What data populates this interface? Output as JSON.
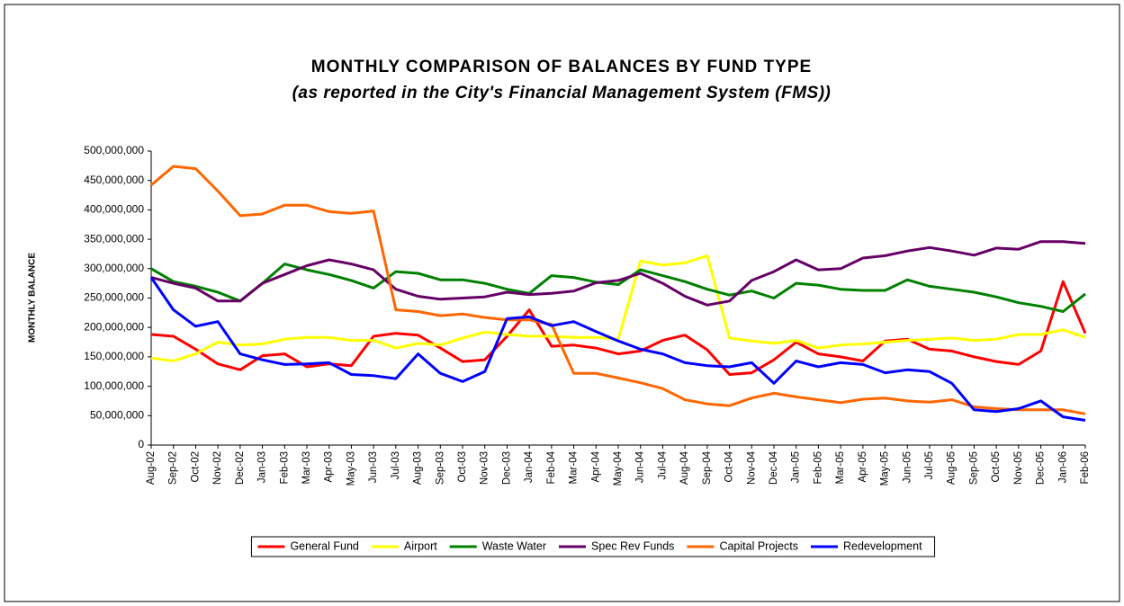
{
  "chart_data": {
    "type": "line",
    "title": "MONTHLY COMPARISON OF BALANCES BY FUND TYPE",
    "subtitle": "(as reported in the City's Financial Management System (FMS))",
    "y_label": "MONTHLY BALANCE",
    "categories": [
      "Aug-02",
      "Sep-02",
      "Oct-02",
      "Nov-02",
      "Dec-02",
      "Jan-03",
      "Feb-03",
      "Mar-03",
      "Apr-03",
      "May-03",
      "Jun-03",
      "Jul-03",
      "Aug-03",
      "Sep-03",
      "Oct-03",
      "Nov-03",
      "Dec-03",
      "Jan-04",
      "Feb-04",
      "Mar-04",
      "Apr-04",
      "May-04",
      "Jun-04",
      "Jul-04",
      "Aug-04",
      "Sep-04",
      "Oct-04",
      "Nov-04",
      "Dec-04",
      "Jan-05",
      "Feb-05",
      "Mar-05",
      "Apr-05",
      "May-05",
      "Jun-05",
      "Jul-05",
      "Aug-05",
      "Sep-05",
      "Oct-05",
      "Nov-05",
      "Dec-05",
      "Jan-06",
      "Feb-06"
    ],
    "series": [
      {
        "name": "General Fund",
        "color": "#ff0000",
        "values": [
          188000000,
          185000000,
          163000000,
          138000000,
          128000000,
          152000000,
          155000000,
          133000000,
          138000000,
          135000000,
          185000000,
          190000000,
          187000000,
          165000000,
          142000000,
          145000000,
          185000000,
          230000000,
          168000000,
          170000000,
          165000000,
          155000000,
          160000000,
          178000000,
          187000000,
          162000000,
          120000000,
          123000000,
          145000000,
          175000000,
          155000000,
          150000000,
          143000000,
          177000000,
          180000000,
          163000000,
          160000000,
          150000000,
          142000000,
          137000000,
          160000000,
          278000000,
          190000000
        ]
      },
      {
        "name": "Airport",
        "color": "#ffff00",
        "values": [
          148000000,
          143000000,
          155000000,
          175000000,
          170000000,
          172000000,
          180000000,
          183000000,
          183000000,
          178000000,
          178000000,
          165000000,
          173000000,
          170000000,
          182000000,
          192000000,
          188000000,
          185000000,
          185000000,
          183000000,
          183000000,
          180000000,
          313000000,
          306000000,
          310000000,
          322000000,
          182000000,
          177000000,
          173000000,
          178000000,
          165000000,
          170000000,
          172000000,
          175000000,
          178000000,
          180000000,
          182000000,
          178000000,
          180000000,
          188000000,
          188000000,
          196000000,
          183000000
        ]
      },
      {
        "name": "Waste Water",
        "color": "#008000",
        "values": [
          300000000,
          278000000,
          270000000,
          260000000,
          245000000,
          275000000,
          308000000,
          298000000,
          290000000,
          280000000,
          267000000,
          295000000,
          292000000,
          281000000,
          281000000,
          275000000,
          265000000,
          258000000,
          288000000,
          285000000,
          277000000,
          273000000,
          298000000,
          288000000,
          278000000,
          265000000,
          255000000,
          262000000,
          250000000,
          275000000,
          272000000,
          265000000,
          263000000,
          263000000,
          281000000,
          270000000,
          265000000,
          260000000,
          252000000,
          242000000,
          236000000,
          227000000,
          257000000
        ]
      },
      {
        "name": "Spec Rev Funds",
        "color": "#660066",
        "values": [
          285000000,
          275000000,
          267000000,
          245000000,
          245000000,
          275000000,
          290000000,
          305000000,
          315000000,
          308000000,
          298000000,
          265000000,
          253000000,
          248000000,
          250000000,
          252000000,
          260000000,
          256000000,
          258000000,
          262000000,
          276000000,
          280000000,
          292000000,
          275000000,
          253000000,
          238000000,
          245000000,
          280000000,
          295000000,
          315000000,
          298000000,
          300000000,
          318000000,
          322000000,
          330000000,
          336000000,
          330000000,
          323000000,
          335000000,
          333000000,
          346000000,
          346000000,
          343000000
        ]
      },
      {
        "name": "Capital Projects",
        "color": "#ff6600",
        "values": [
          442000000,
          474000000,
          470000000,
          432000000,
          390000000,
          393000000,
          408000000,
          408000000,
          397000000,
          394000000,
          398000000,
          230000000,
          227000000,
          220000000,
          223000000,
          217000000,
          213000000,
          213000000,
          205000000,
          122000000,
          122000000,
          114000000,
          106000000,
          96000000,
          77000000,
          70000000,
          67000000,
          80000000,
          88000000,
          82000000,
          77000000,
          72000000,
          78000000,
          80000000,
          75000000,
          73000000,
          77000000,
          65000000,
          62000000,
          60000000,
          60000000,
          60000000,
          53000000
        ]
      },
      {
        "name": "Redevelopment",
        "color": "#0000ff",
        "values": [
          285000000,
          230000000,
          202000000,
          210000000,
          155000000,
          145000000,
          137000000,
          138000000,
          140000000,
          120000000,
          118000000,
          113000000,
          155000000,
          122000000,
          108000000,
          125000000,
          215000000,
          218000000,
          203000000,
          210000000,
          193000000,
          177000000,
          163000000,
          155000000,
          140000000,
          135000000,
          133000000,
          140000000,
          105000000,
          143000000,
          133000000,
          140000000,
          137000000,
          123000000,
          128000000,
          125000000,
          105000000,
          60000000,
          57000000,
          62000000,
          75000000,
          48000000,
          42000000
        ]
      }
    ],
    "ylim": [
      0,
      500000000
    ],
    "yticks": [
      0,
      {
        "value": 50000000,
        "label": "50,000,000"
      },
      {
        "value": 100000000,
        "label": "100,000,000"
      },
      {
        "value": 150000000,
        "label": "150,000,000"
      },
      {
        "value": 200000000,
        "label": "200,000,000"
      },
      {
        "value": 250000000,
        "label": "250,000,000"
      },
      {
        "value": 300000000,
        "label": "300,000,000"
      },
      {
        "value": 350000000,
        "label": "350,000,000"
      },
      {
        "value": 400000000,
        "label": "400,000,000"
      },
      {
        "value": 450000000,
        "label": "450,000,000"
      },
      {
        "value": 500000000,
        "label": "500,000,000"
      }
    ],
    "legend": "bottom"
  }
}
